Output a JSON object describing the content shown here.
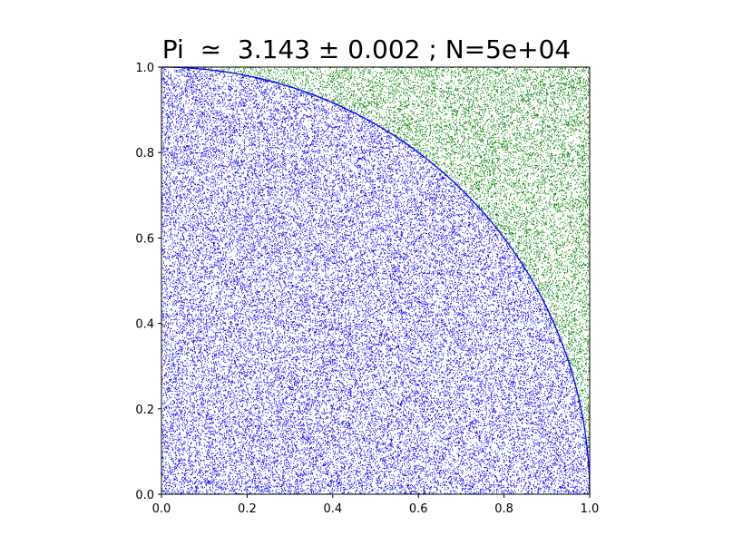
{
  "chart_data": {
    "type": "scatter",
    "title": "Pi  ≃  3.143 ± 0.002 ; N=5e+04",
    "xlabel": "",
    "ylabel": "",
    "xlim": [
      0.0,
      1.0
    ],
    "ylim": [
      0.0,
      1.0
    ],
    "x_ticks": [
      "0.0",
      "0.2",
      "0.4",
      "0.6",
      "0.8",
      "1.0"
    ],
    "y_ticks": [
      "0.0",
      "0.2",
      "0.4",
      "0.6",
      "0.8",
      "1.0"
    ],
    "grid": false,
    "legend": "none",
    "series": [
      {
        "region": "inside quarter circle (x² + y² ≤ 1)",
        "color": "#0000ff",
        "marker": "small dots",
        "fraction_of_points": 0.786
      },
      {
        "region": "outside quarter circle (x² + y² > 1)",
        "color": "#008000",
        "marker": "small dots",
        "fraction_of_points": 0.214
      }
    ],
    "boundary_curve": {
      "equation": "x² + y² = 1",
      "color": "#0000ff"
    },
    "total_points": 50000,
    "pi_estimate": 3.143,
    "pi_uncertainty": 0.002
  }
}
